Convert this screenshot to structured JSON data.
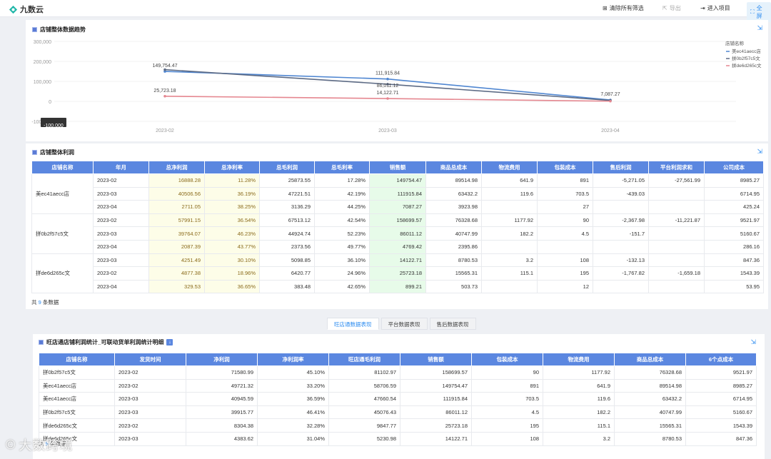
{
  "app": {
    "logo_text": "九数云"
  },
  "toolbar": {
    "clear": "清除所有筛选",
    "export": "导出",
    "enter": "进入项目",
    "fullscreen": "全屏"
  },
  "chart_section": {
    "title": "店铺整体数据趋势"
  },
  "chart_data": {
    "type": "line",
    "x": [
      "2023-02",
      "2023-03",
      "2023-04"
    ],
    "yticks": [
      "300,000",
      "200,000",
      "100,000",
      "0",
      "-100,000"
    ],
    "ylim": [
      -100000,
      300000
    ],
    "legend_title": "店铺名称",
    "legend_position": "top-right",
    "series": [
      {
        "name": "美ec41aecc店",
        "values": [
          149754.47,
          111915.84,
          7087.27
        ],
        "color": "#4f86d1",
        "labels": [
          "149,754.47",
          "111,915.84",
          "7,087.27"
        ]
      },
      {
        "name": "拼0b2f57c5文",
        "values": [
          158699.57,
          86011.12,
          4769.42
        ],
        "color": "#5d6b85",
        "labels": [
          "",
          "86,011.12",
          ""
        ]
      },
      {
        "name": "拼de6d265c文",
        "values": [
          25723.18,
          14122.71,
          899.21
        ],
        "color": "#e58790",
        "labels": [
          "25,723.18",
          "14,122.71",
          ""
        ]
      }
    ],
    "tooltip": "-100,000"
  },
  "profit_section": {
    "title": "店铺整体利润",
    "headers": [
      "店铺名称",
      "年月",
      "总净利润",
      "总净利率",
      "总毛利润",
      "总毛利率",
      "销售额",
      "商品总成本",
      "物流费用",
      "包装成本",
      "售后利润",
      "平台利润求和",
      "公司成本"
    ],
    "groups": [
      {
        "store": "美ec41aecc店",
        "rows": [
          [
            "2023-02",
            "16888.28",
            "11.28%",
            "25873.55",
            "17.28%",
            "149754.47",
            "89514.98",
            "641.9",
            "891",
            "-5,271.05",
            "-27,561.99",
            "8985.27"
          ],
          [
            "2023-03",
            "40506.56",
            "36.19%",
            "47221.51",
            "42.19%",
            "111915.84",
            "63432.2",
            "119.6",
            "703.5",
            "-439.03",
            "",
            "6714.95"
          ],
          [
            "2023-04",
            "2711.05",
            "38.25%",
            "3136.29",
            "44.25%",
            "7087.27",
            "3923.98",
            "",
            "27",
            "",
            "",
            "425.24"
          ]
        ]
      },
      {
        "store": "拼0b2f57c5文",
        "rows": [
          [
            "2023-02",
            "57991.15",
            "36.54%",
            "67513.12",
            "42.54%",
            "158699.57",
            "76328.68",
            "1177.92",
            "90",
            "-2,367.98",
            "-11,221.87",
            "9521.97"
          ],
          [
            "2023-03",
            "39764.07",
            "46.23%",
            "44924.74",
            "52.23%",
            "86011.12",
            "40747.99",
            "182.2",
            "4.5",
            "-151.7",
            "",
            "5160.67"
          ],
          [
            "2023-04",
            "2087.39",
            "43.77%",
            "2373.56",
            "49.77%",
            "4769.42",
            "2395.86",
            "",
            "",
            "",
            "",
            "286.16"
          ]
        ]
      },
      {
        "store": "拼de6d265c文",
        "rows": [
          [
            "2023-03",
            "4251.49",
            "30.10%",
            "5098.85",
            "36.10%",
            "14122.71",
            "8780.53",
            "3.2",
            "108",
            "-132.13",
            "",
            "847.36"
          ],
          [
            "2023-02",
            "4877.38",
            "18.96%",
            "6420.77",
            "24.96%",
            "25723.18",
            "15565.31",
            "115.1",
            "195",
            "-1,767.82",
            "-1,659.18",
            "1543.39"
          ],
          [
            "2023-04",
            "329.53",
            "36.65%",
            "383.48",
            "42.65%",
            "899.21",
            "503.73",
            "",
            "12",
            "",
            "",
            "53.95"
          ]
        ]
      }
    ],
    "footer_prefix": "共",
    "footer_count": "9",
    "footer_suffix": "条数据"
  },
  "tabs": [
    "旺店通数据表现",
    "平台数据表现",
    "售后数据表现"
  ],
  "detail_section": {
    "title": "旺店通店铺利润统计_可联动货单利润统计明细",
    "headers": [
      "店铺名称",
      "发货时间",
      "净利润",
      "净利润率",
      "旺店通毛利润",
      "销售额",
      "包装成本",
      "物流费用",
      "商品总成本",
      "6个点成本"
    ],
    "rows": [
      [
        "拼0b2f57c5文",
        "2023-02",
        "71580.99",
        "45.10%",
        "81102.97",
        "158699.57",
        "90",
        "1177.92",
        "76328.68",
        "9521.97"
      ],
      [
        "美ec41aecc店",
        "2023-02",
        "49721.32",
        "33.20%",
        "58706.59",
        "149754.47",
        "891",
        "641.9",
        "89514.98",
        "8985.27"
      ],
      [
        "美ec41aecc店",
        "2023-03",
        "40945.59",
        "36.59%",
        "47660.54",
        "111915.84",
        "703.5",
        "119.6",
        "63432.2",
        "6714.95"
      ],
      [
        "拼0b2f57c5文",
        "2023-03",
        "39915.77",
        "46.41%",
        "45076.43",
        "86011.12",
        "4.5",
        "182.2",
        "40747.99",
        "5160.67"
      ],
      [
        "拼de6d265c文",
        "2023-02",
        "8304.38",
        "32.28%",
        "9847.77",
        "25723.18",
        "195",
        "115.1",
        "15565.31",
        "1543.39"
      ],
      [
        "拼de6d265c文",
        "2023-03",
        "4383.62",
        "31.04%",
        "5230.98",
        "14122.71",
        "108",
        "3.2",
        "8780.53",
        "847.36"
      ]
    ],
    "footer_prefix": "共",
    "footer_count": "9",
    "footer_suffix": "条数据"
  },
  "watermark": "大数跨境"
}
